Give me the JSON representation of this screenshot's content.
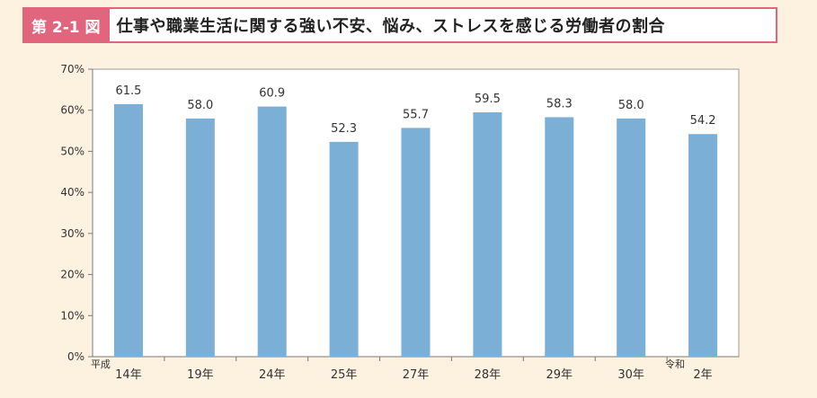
{
  "title": {
    "label": "第 2-1 図",
    "text": "仕事や職業生活に関する強い不安、悩み、ストレスを感じる労働者の割合"
  },
  "colors": {
    "accent": "#e2657e",
    "bar": "#7bafd6",
    "background": "#fdf1e0",
    "plot_background": "#ffffff"
  },
  "chart_data": {
    "type": "bar",
    "categories": [
      "14年",
      "19年",
      "24年",
      "25年",
      "27年",
      "28年",
      "29年",
      "30年",
      "2年"
    ],
    "era_labels": {
      "平成": "14年",
      "令和": "2年"
    },
    "values": [
      61.5,
      58.0,
      60.9,
      52.3,
      55.7,
      59.5,
      58.3,
      58.0,
      54.2
    ],
    "value_labels": [
      "61.5",
      "58.0",
      "60.9",
      "52.3",
      "55.7",
      "59.5",
      "58.3",
      "58.0",
      "54.2"
    ],
    "ylim": [
      0,
      70
    ],
    "yticks": [
      "0%",
      "10%",
      "20%",
      "30%",
      "40%",
      "50%",
      "60%",
      "70%"
    ],
    "grid": false,
    "legend": "none"
  }
}
